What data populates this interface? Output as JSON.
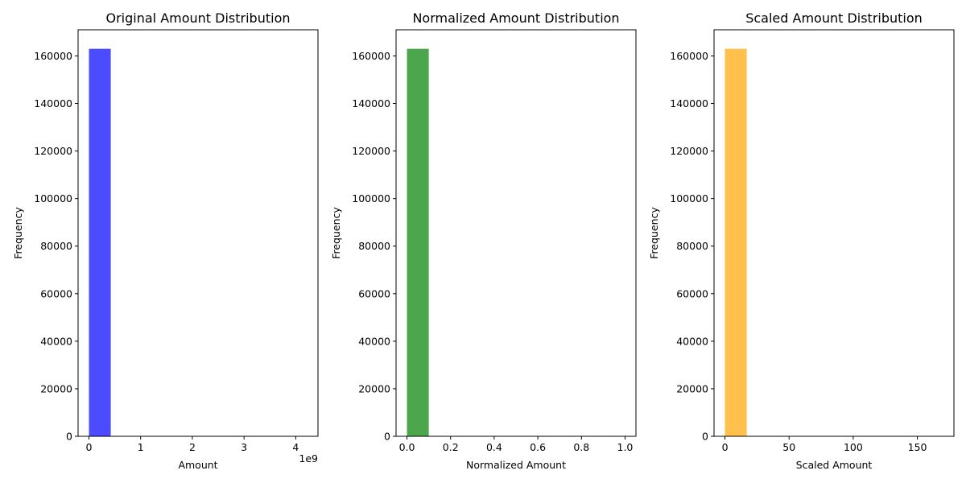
{
  "chart_data": [
    {
      "type": "bar",
      "title": "Original Amount Distribution",
      "xlabel": "Amount",
      "ylabel": "Frequency",
      "x_offset_label": "1e9",
      "xlim": [
        -0.21,
        4.43
      ],
      "ylim": [
        0,
        171000
      ],
      "xticks": [
        0,
        1,
        2,
        3,
        4
      ],
      "yticks": [
        0,
        20000,
        40000,
        60000,
        80000,
        100000,
        120000,
        140000,
        160000
      ],
      "bin_edges": [
        0,
        0.422,
        0.844,
        1.266,
        1.688,
        2.11,
        2.532,
        2.954,
        3.376,
        3.798,
        4.22
      ],
      "values": [
        163000,
        0,
        0,
        0,
        0,
        0,
        0,
        0,
        0,
        0
      ],
      "color": "#0000ff"
    },
    {
      "type": "bar",
      "title": "Normalized Amount Distribution",
      "xlabel": "Normalized Amount",
      "ylabel": "Frequency",
      "xlim": [
        -0.05,
        1.05
      ],
      "ylim": [
        0,
        171000
      ],
      "xticks": [
        0.0,
        0.2,
        0.4,
        0.6,
        0.8,
        1.0
      ],
      "xtick_labels": [
        "0.0",
        "0.2",
        "0.4",
        "0.6",
        "0.8",
        "1.0"
      ],
      "yticks": [
        0,
        20000,
        40000,
        60000,
        80000,
        100000,
        120000,
        140000,
        160000
      ],
      "bin_edges": [
        0,
        0.1,
        0.2,
        0.3,
        0.4,
        0.5,
        0.6,
        0.7,
        0.8,
        0.9,
        1.0
      ],
      "values": [
        163000,
        0,
        0,
        0,
        0,
        0,
        0,
        0,
        0,
        0
      ],
      "color": "#008000"
    },
    {
      "type": "bar",
      "title": "Scaled Amount Distribution",
      "xlabel": "Scaled Amount",
      "ylabel": "Frequency",
      "xlim": [
        -8.5,
        178.5
      ],
      "ylim": [
        0,
        171000
      ],
      "xticks": [
        0,
        50,
        100,
        150
      ],
      "yticks": [
        0,
        20000,
        40000,
        60000,
        80000,
        100000,
        120000,
        140000,
        160000
      ],
      "bin_edges": [
        0,
        17,
        34,
        51,
        68,
        85,
        102,
        119,
        136,
        153,
        170
      ],
      "values": [
        163000,
        0,
        0,
        0,
        0,
        0,
        0,
        0,
        0,
        0
      ],
      "color": "#ffa500"
    }
  ]
}
